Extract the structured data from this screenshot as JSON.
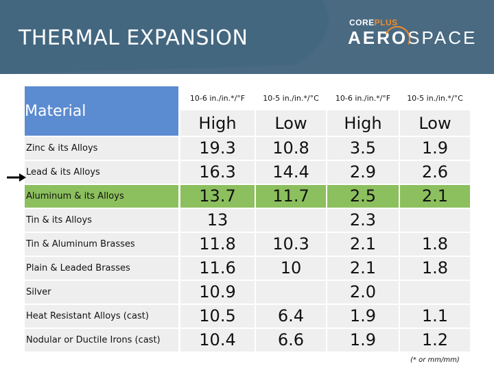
{
  "header": {
    "title": "THERMAL EXPANSION",
    "logo_top_left": "CORE",
    "logo_top_right": "PLUS",
    "logo_main_left": "AERO",
    "logo_main_right": "SPACE"
  },
  "table": {
    "material_header": "Material",
    "column_units": [
      "10-6 in./in.*/°F",
      "10-5 in./in.*/°C",
      "10-6 in./in.*/°F",
      "10-5 in./in.*/°C"
    ],
    "column_levels": [
      "High",
      "Low",
      "High",
      "Low"
    ],
    "rows": [
      {
        "material": "Zinc & its Alloys",
        "values": [
          "19.3",
          "10.8",
          "3.5",
          "1.9"
        ]
      },
      {
        "material": "Lead & its Alloys",
        "values": [
          "16.3",
          "14.4",
          "2.9",
          "2.6"
        ]
      },
      {
        "material": "Aluminum & its Alloys",
        "values": [
          "13.7",
          "11.7",
          "2.5",
          "2.1"
        ]
      },
      {
        "material": "Tin & its Alloys",
        "values": [
          "13",
          "",
          "2.3",
          ""
        ]
      },
      {
        "material": "Tin & Aluminum Brasses",
        "values": [
          "11.8",
          "10.3",
          "2.1",
          "1.8"
        ]
      },
      {
        "material": "Plain & Leaded Brasses",
        "values": [
          "11.6",
          "10",
          "2.1",
          "1.8"
        ]
      },
      {
        "material": "Silver",
        "values": [
          "10.9",
          "",
          "2.0",
          ""
        ]
      },
      {
        "material": "Heat Resistant Alloys (cast)",
        "values": [
          "10.5",
          "6.4",
          "1.9",
          "1.1"
        ]
      },
      {
        "material": "Nodular or Ductile Irons (cast)",
        "values": [
          "10.4",
          "6.6",
          "1.9",
          "1.2"
        ]
      }
    ],
    "highlighted_row": "Aluminum & its Alloys",
    "pointed_row": "Lead & its Alloys",
    "footnote": "(* or mm/mm)"
  },
  "colors": {
    "header_bg": "#4a6a82",
    "material_header_bg": "#5b8bd0",
    "highlight_row": "#8cbf5e",
    "logo_accent": "#f28c28"
  }
}
